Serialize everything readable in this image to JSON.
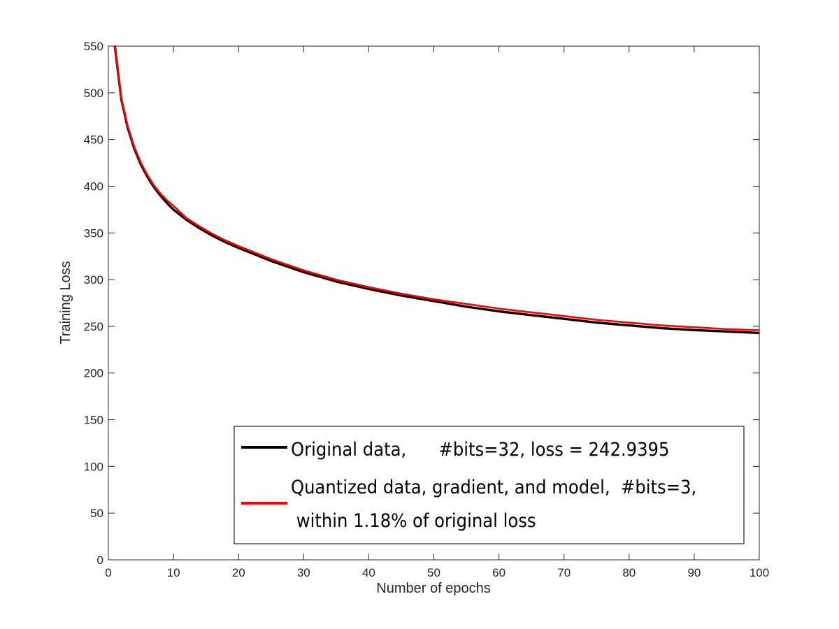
{
  "chart_data": {
    "type": "line",
    "xlabel": "Number of epochs",
    "ylabel": "Training Loss",
    "xlim": [
      0,
      100
    ],
    "ylim": [
      0,
      550
    ],
    "xticks": [
      0,
      10,
      20,
      30,
      40,
      50,
      60,
      70,
      80,
      90,
      100
    ],
    "yticks": [
      0,
      50,
      100,
      150,
      200,
      250,
      300,
      350,
      400,
      450,
      500,
      550
    ],
    "grid": false,
    "legend_position": "bottom-right",
    "x": [
      1,
      2,
      3,
      4,
      5,
      6,
      7,
      8,
      9,
      10,
      12,
      14,
      16,
      18,
      20,
      25,
      30,
      35,
      40,
      45,
      50,
      55,
      60,
      65,
      70,
      75,
      80,
      85,
      90,
      95,
      100
    ],
    "series": [
      {
        "name": "Original data,      #bits=32, loss = 242.9395",
        "color": "#000000",
        "values": [
          550,
          493,
          462,
          440,
          423,
          410,
          399,
          390,
          382,
          375,
          364,
          355,
          347,
          340,
          334,
          320,
          308,
          298,
          290,
          283,
          277,
          271,
          266,
          262,
          258,
          254,
          251,
          248,
          246,
          244.5,
          242.9
        ]
      },
      {
        "name": "Quantized data, gradient, and model,  #bits=3,\n within 1.18% of original loss",
        "color": "#ff0000",
        "values": [
          551,
          494,
          464,
          442,
          425,
          412,
          401,
          392,
          385,
          379,
          366,
          357,
          349,
          342,
          336,
          322,
          310,
          300,
          292,
          285,
          279,
          274,
          269,
          265,
          261,
          257,
          254,
          251,
          249,
          247,
          245.8
        ]
      }
    ]
  }
}
